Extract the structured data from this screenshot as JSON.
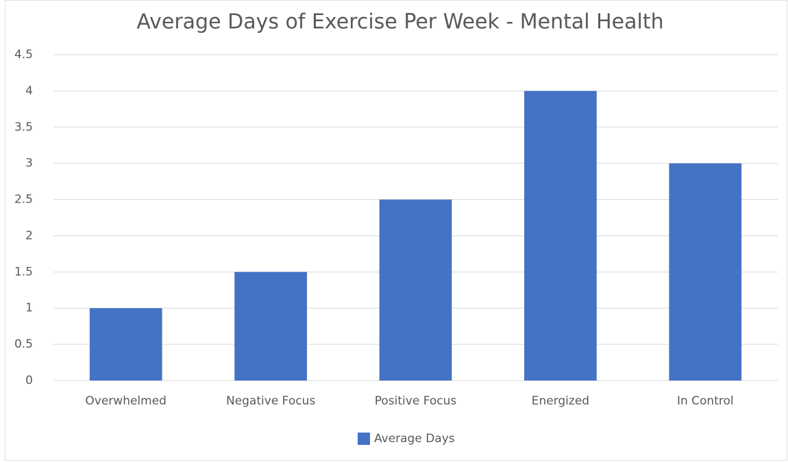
{
  "chart_data": {
    "type": "bar",
    "title": "Average Days of Exercise Per Week - Mental Health",
    "categories": [
      "Overwhelmed",
      "Negative Focus",
      "Positive Focus",
      "Energized",
      "In Control"
    ],
    "series": [
      {
        "name": "Average Days",
        "color": "#4472c4",
        "values": [
          1,
          1.5,
          2.5,
          4,
          3
        ]
      }
    ],
    "ylim": [
      0,
      4.5
    ],
    "yticks": [
      0,
      0.5,
      1,
      1.5,
      2,
      2.5,
      3,
      3.5,
      4,
      4.5
    ],
    "grid": true,
    "legend": "bottom"
  }
}
